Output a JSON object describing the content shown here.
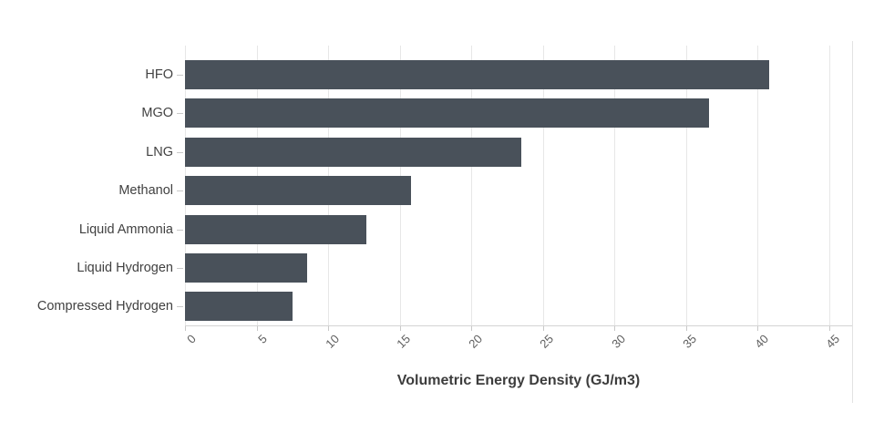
{
  "chart_data": {
    "type": "bar",
    "orientation": "horizontal",
    "title": "",
    "categories": [
      "HFO",
      "MGO",
      "LNG",
      "Methanol",
      "Liquid Ammonia",
      "Liquid Hydrogen",
      "Compressed Hydrogen"
    ],
    "values": [
      40.8,
      36.6,
      23.5,
      15.8,
      12.7,
      8.5,
      7.5
    ],
    "xlabel": "Volumetric Energy Density (GJ/m3)",
    "ylabel": "",
    "xlim": [
      0,
      46.6
    ],
    "xticks": [
      0,
      5,
      10,
      15,
      20,
      25,
      30,
      35,
      40,
      45
    ],
    "x_tick_labels": [
      "0",
      "5",
      "10",
      "15",
      "20",
      "25",
      "30",
      "35",
      "40",
      "45"
    ],
    "x_tick_angle": -45,
    "grid": "vertical",
    "legend": false,
    "bar_color": "#49515a"
  },
  "style": {
    "background": "#ffffff",
    "gridline_color": "#e7e7e7",
    "axis_line_color": "#d4d4d4",
    "tick_mark_color": "#c9c9c9",
    "category_label_color": "#414141",
    "tick_label_color": "#5f5f5f",
    "axis_title_color": "#3d3d3d",
    "panel_divider_color": "#e2e2e2"
  }
}
